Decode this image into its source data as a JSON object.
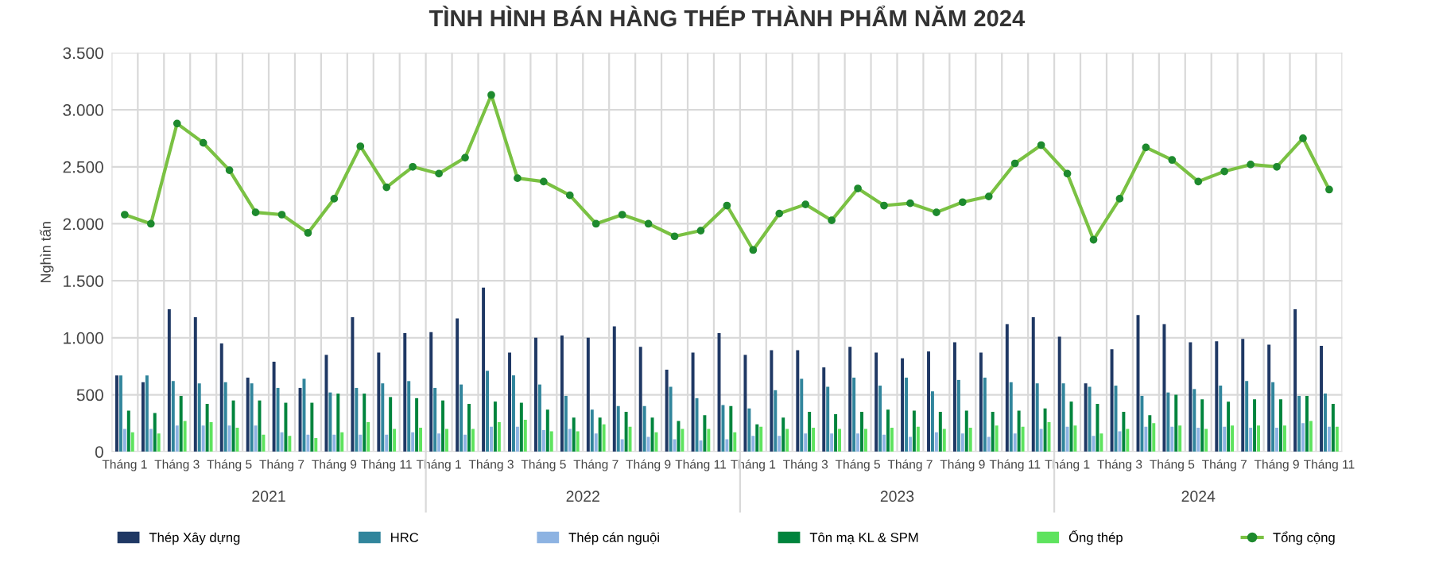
{
  "chart_data": {
    "type": "bar",
    "title": "TÌNH HÌNH BÁN HÀNG THÉP THÀNH PHẨM NĂM 2024",
    "ylabel": "Nghìn tấn",
    "categories": [
      "Tháng 1",
      null,
      "Tháng 3",
      null,
      "Tháng 5",
      null,
      "Tháng 7",
      null,
      "Tháng 9",
      null,
      "Tháng 11",
      null,
      "Tháng 1",
      null,
      "Tháng 3",
      null,
      "Tháng 5",
      null,
      "Tháng 7",
      null,
      "Tháng 9",
      null,
      "Tháng 11",
      null,
      "Tháng 1",
      null,
      "Tháng 3",
      null,
      "Tháng 5",
      null,
      "Tháng 7",
      null,
      "Tháng 9",
      null,
      "Tháng 11",
      null,
      "Tháng 1",
      null,
      "Tháng 3",
      null,
      "Tháng 5",
      null,
      "Tháng 7",
      null,
      "Tháng 9",
      null,
      "Tháng 11"
    ],
    "annotations": [
      "2021",
      "2022",
      "2023",
      "2024"
    ],
    "series": [
      {
        "name": "Thép Xây dựng",
        "color": "#1f3864",
        "values": [
          670,
          610,
          1250,
          1180,
          950,
          650,
          790,
          560,
          850,
          1180,
          870,
          1040,
          1050,
          1170,
          1440,
          870,
          1000,
          1020,
          1000,
          1100,
          920,
          720,
          870,
          1040,
          850,
          890,
          890,
          740,
          920,
          870,
          820,
          880,
          960,
          870,
          1120,
          1180,
          1010,
          600,
          900,
          1200,
          1120,
          960,
          970,
          990,
          940,
          1250,
          930
        ]
      },
      {
        "name": "HRC",
        "color": "#31859c",
        "values": [
          670,
          670,
          620,
          600,
          610,
          600,
          560,
          640,
          520,
          560,
          600,
          620,
          560,
          590,
          710,
          670,
          590,
          490,
          370,
          400,
          400,
          570,
          470,
          410,
          380,
          540,
          640,
          570,
          650,
          580,
          650,
          530,
          630,
          650,
          610,
          600,
          600,
          570,
          580,
          490,
          520,
          550,
          580,
          620,
          610,
          490,
          510
        ]
      },
      {
        "name": "Thép cán nguội",
        "color": "#8db3e2",
        "values": [
          200,
          200,
          230,
          230,
          230,
          230,
          170,
          150,
          150,
          150,
          150,
          170,
          160,
          150,
          220,
          220,
          190,
          200,
          160,
          110,
          130,
          110,
          100,
          110,
          140,
          140,
          160,
          160,
          160,
          150,
          130,
          170,
          160,
          130,
          160,
          200,
          220,
          140,
          180,
          220,
          220,
          210,
          220,
          210,
          210,
          250,
          220
        ]
      },
      {
        "name": "Tôn mạ KL & SPM",
        "color": "#00843d",
        "values": [
          360,
          340,
          490,
          420,
          450,
          450,
          430,
          430,
          510,
          510,
          480,
          470,
          450,
          420,
          440,
          430,
          370,
          300,
          300,
          350,
          300,
          270,
          320,
          400,
          240,
          300,
          350,
          330,
          350,
          370,
          360,
          350,
          360,
          350,
          360,
          380,
          440,
          420,
          350,
          320,
          500,
          460,
          440,
          460,
          460,
          490,
          420
        ]
      },
      {
        "name": "Ống thép",
        "color": "#5ee35e",
        "values": [
          170,
          160,
          270,
          260,
          210,
          150,
          140,
          120,
          170,
          260,
          200,
          210,
          200,
          200,
          260,
          280,
          180,
          180,
          240,
          220,
          170,
          200,
          200,
          170,
          220,
          200,
          210,
          200,
          200,
          210,
          220,
          200,
          210,
          230,
          220,
          260,
          230,
          160,
          200,
          250,
          230,
          200,
          230,
          230,
          230,
          270,
          220
        ]
      },
      {
        "name": "Tổng cộng",
        "type": "line",
        "color": "#7ac143",
        "marker": "circle",
        "values": [
          2080,
          2000,
          2880,
          2710,
          2470,
          2100,
          2080,
          1920,
          2220,
          2680,
          2320,
          2500,
          2440,
          2580,
          3130,
          2400,
          2370,
          2250,
          2000,
          2080,
          2000,
          1890,
          1940,
          2160,
          1770,
          2090,
          2170,
          2030,
          2310,
          2160,
          2180,
          2100,
          2190,
          2240,
          2530,
          2690,
          2440,
          1860,
          2220,
          2670,
          2560,
          2370,
          2460,
          2520,
          2500,
          2750,
          2300
        ]
      }
    ],
    "ylim": [
      0,
      3500
    ],
    "yticks": [
      {
        "value": 0,
        "label": "0"
      },
      {
        "value": 500,
        "label": "500"
      },
      {
        "value": 1000,
        "label": "1.000"
      },
      {
        "value": 1500,
        "label": "1.500"
      },
      {
        "value": 2000,
        "label": "2.000"
      },
      {
        "value": 2500,
        "label": "2.500"
      },
      {
        "value": 3000,
        "label": "3.000"
      },
      {
        "value": 3500,
        "label": "3.500"
      }
    ],
    "grid": true,
    "legend": "bottom"
  }
}
